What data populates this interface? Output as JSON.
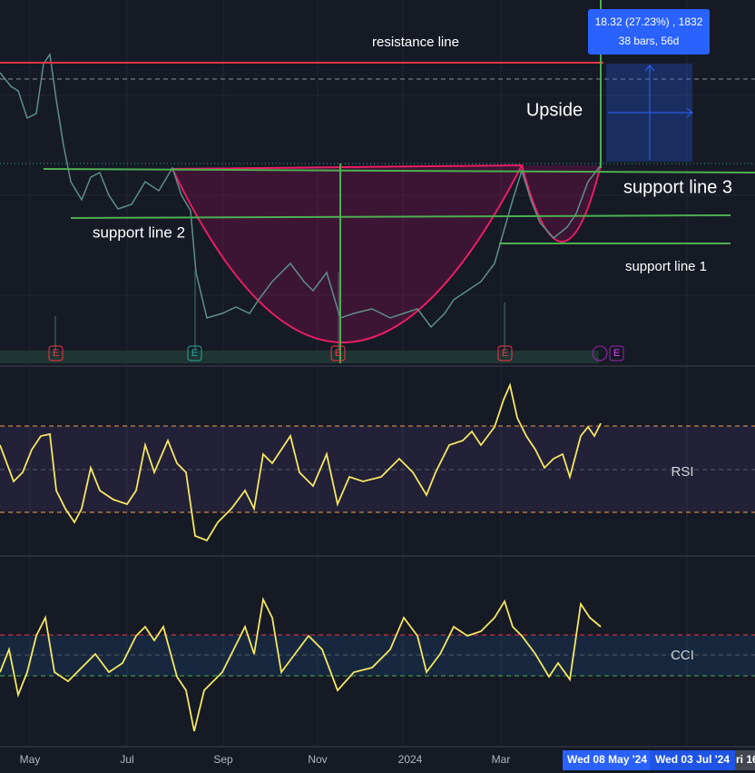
{
  "annotations": {
    "resistance": "resistance line",
    "upside": "Upside",
    "support3": "support line 3",
    "support2": "support line 2",
    "support1": "support line 1"
  },
  "measure": {
    "line1": "18.32 (27.23%) , 1832",
    "line2": "38 bars, 56d"
  },
  "indicators": [
    "RSI",
    "CCI"
  ],
  "x_axis": [
    "May",
    "Jul",
    "Sep",
    "Nov",
    "2024",
    "Mar"
  ],
  "cursor_labels": [
    "Wed 08 May '24",
    "Wed 03 Jul '24",
    "ri 16"
  ],
  "events": [
    "E",
    "E",
    "E",
    "E",
    "E"
  ]
}
